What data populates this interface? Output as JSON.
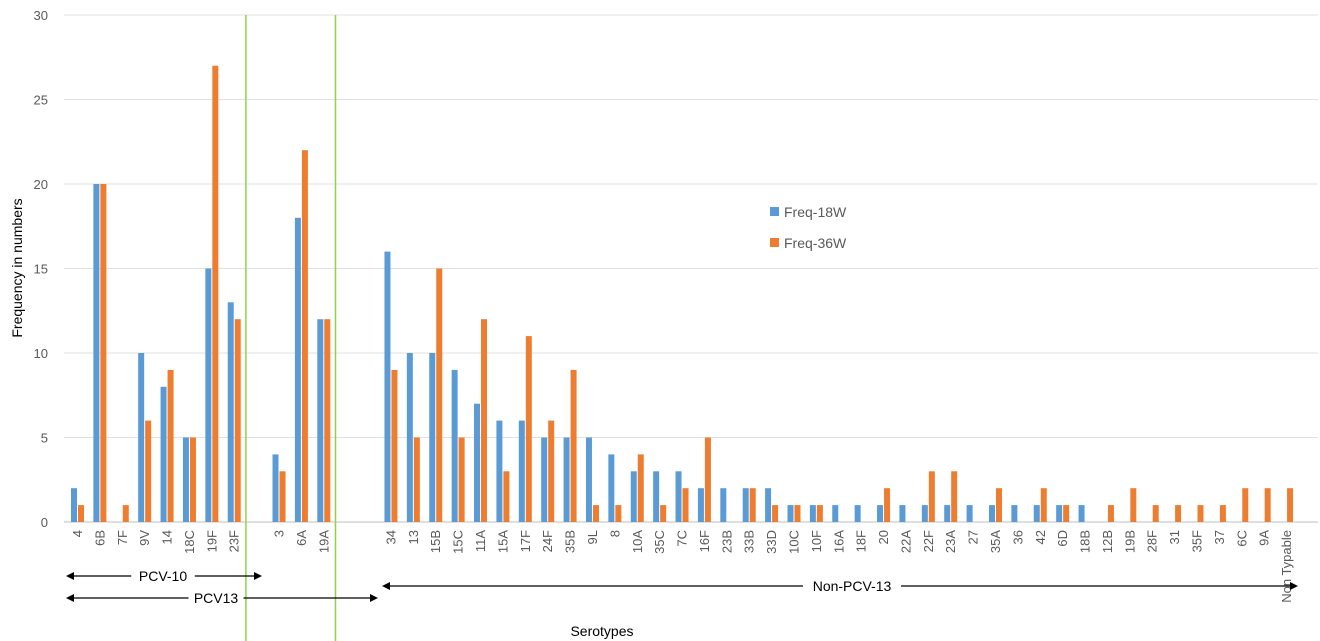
{
  "chart_data": {
    "type": "bar",
    "ylabel": "Frequency  in numbers",
    "xlabel": "Serotypes",
    "ylim": [
      0,
      30
    ],
    "yticks": [
      0,
      5,
      10,
      15,
      20,
      25,
      30
    ],
    "grid": true,
    "legend_position": "center-right",
    "categories": [
      "4",
      "6B",
      "7F",
      "9V",
      "14",
      "18C",
      "19F",
      "23F",
      "",
      "3",
      "6A",
      "19A",
      "",
      "",
      "34",
      "13",
      "15B",
      "15C",
      "11A",
      "15A",
      "17F",
      "24F",
      "35B",
      "9L",
      "8",
      "10A",
      "35C",
      "7C",
      "16F",
      "23B",
      "33B",
      "33D",
      "10C",
      "10F",
      "16A",
      "18F",
      "20",
      "22A",
      "22F",
      "23A",
      "27",
      "35A",
      "36",
      "42",
      "6D",
      "18B",
      "12B",
      "19B",
      "28F",
      "31",
      "35F",
      "37",
      "6C",
      "9A",
      "Non Typable"
    ],
    "series": [
      {
        "name": "Freq-18W",
        "color": "#5B9BD5",
        "values": [
          2,
          20,
          0,
          10,
          8,
          5,
          15,
          13,
          null,
          4,
          18,
          12,
          null,
          null,
          16,
          10,
          10,
          9,
          7,
          6,
          6,
          5,
          5,
          5,
          4,
          3,
          3,
          3,
          2,
          2,
          2,
          2,
          1,
          1,
          1,
          1,
          1,
          1,
          1,
          1,
          1,
          1,
          1,
          1,
          1,
          1,
          0,
          0,
          0,
          0,
          0,
          0,
          0,
          0,
          0
        ]
      },
      {
        "name": "Freq-36W",
        "color": "#ED7D31",
        "values": [
          1,
          20,
          1,
          6,
          9,
          5,
          27,
          12,
          null,
          3,
          22,
          12,
          null,
          null,
          9,
          5,
          15,
          5,
          12,
          3,
          11,
          6,
          9,
          1,
          1,
          4,
          1,
          2,
          5,
          0,
          2,
          1,
          1,
          1,
          0,
          0,
          2,
          0,
          3,
          3,
          0,
          2,
          0,
          2,
          1,
          0,
          1,
          2,
          1,
          1,
          1,
          1,
          2,
          2,
          2
        ]
      }
    ],
    "groups": [
      {
        "label": "PCV-10",
        "from": 0,
        "to": 7
      },
      {
        "label": "PCV13",
        "from": 0,
        "to": 11
      },
      {
        "label": "Non-PCV-13",
        "from": 14,
        "to": 54
      }
    ],
    "dividers_after": [
      7,
      11
    ],
    "divider_color": "#92D050"
  }
}
